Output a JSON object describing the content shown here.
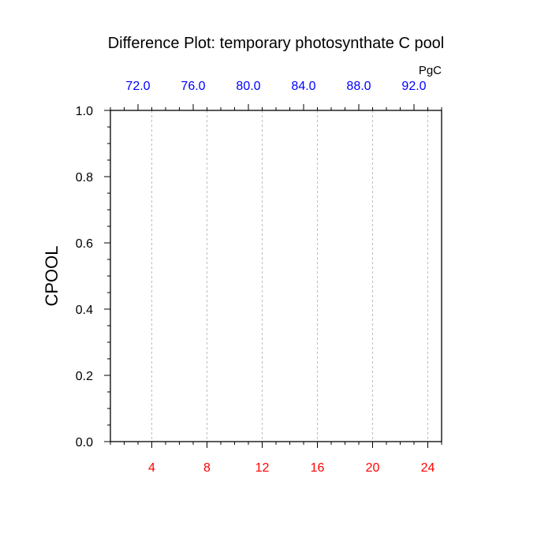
{
  "chart_data": {
    "type": "line",
    "title": "Difference Plot: temporary photosynthate C pool",
    "ylabel": "CPOOL",
    "xlabel": "",
    "top_units": "PgC",
    "ylim": [
      0.0,
      1.0
    ],
    "xlim": [
      1,
      25
    ],
    "x_ticks": [
      4,
      8,
      12,
      16,
      20,
      24
    ],
    "x_tick_labels": [
      "4",
      "8",
      "12",
      "16",
      "20",
      "24"
    ],
    "x_tick_color": "#ff0000",
    "y_ticks": [
      0.0,
      0.2,
      0.4,
      0.6,
      0.8,
      1.0
    ],
    "y_tick_labels": [
      "0.0",
      "0.2",
      "0.4",
      "0.6",
      "0.8",
      "1.0"
    ],
    "top_axis_ticks": [
      72.0,
      76.0,
      80.0,
      84.0,
      88.0,
      92.0
    ],
    "top_axis_tick_labels": [
      "72.0",
      "76.0",
      "80.0",
      "84.0",
      "88.0",
      "92.0"
    ],
    "top_axis_color": "#0000ff",
    "top_axis_range": [
      70.0,
      94.0
    ],
    "vertical_gridlines": true,
    "series": []
  }
}
